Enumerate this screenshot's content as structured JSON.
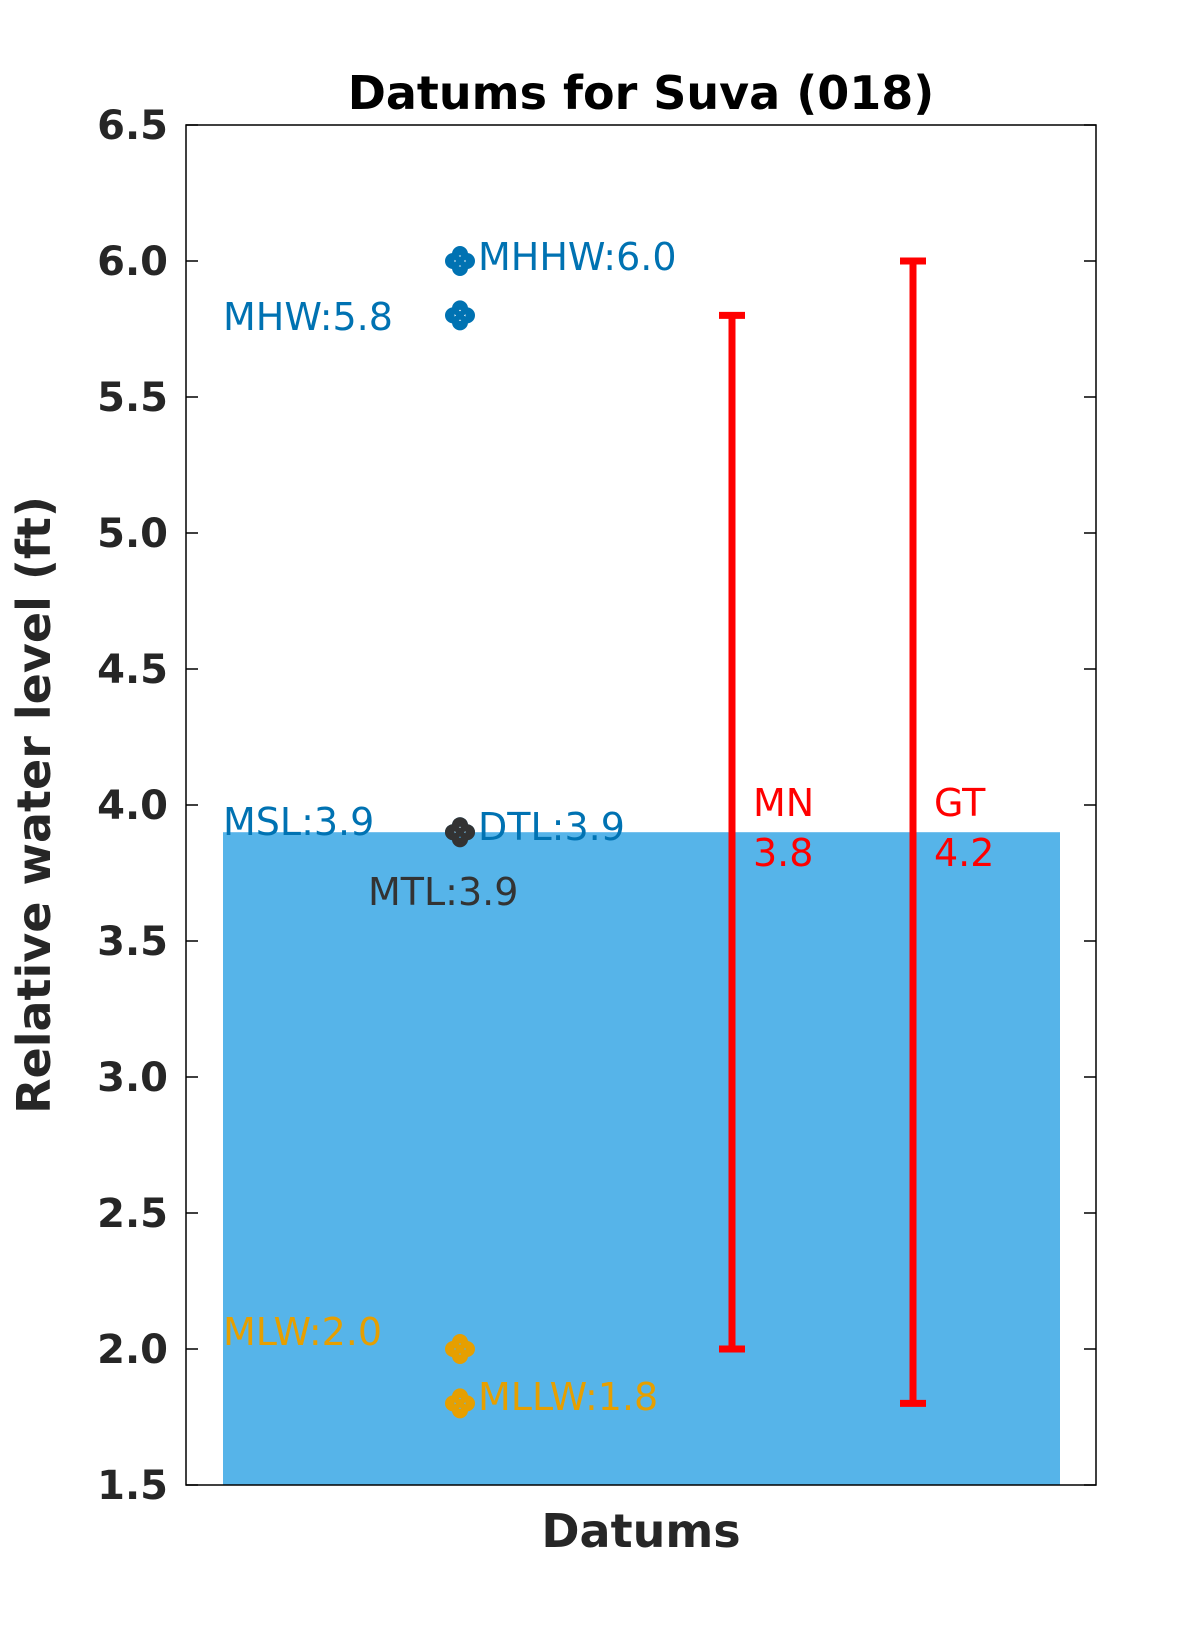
{
  "chart_data": {
    "type": "scatter",
    "title": "Datums for Suva (018)",
    "xlabel": "Datums",
    "ylabel": "Relative water level (ft)",
    "ylim": [
      1.5,
      6.5
    ],
    "yticks": [
      "1.5",
      "2.0",
      "2.5",
      "3.0",
      "3.5",
      "4.0",
      "4.5",
      "5.0",
      "5.5",
      "6.0",
      "6.5"
    ],
    "grid": false,
    "background_fill": {
      "level": 3.9,
      "color": "#56b4e9"
    },
    "datums": [
      {
        "name": "MHHW",
        "value": 6.0,
        "label": "MHHW:6.0",
        "color": "#0072b2",
        "label_side": "right"
      },
      {
        "name": "MHW",
        "value": 5.8,
        "label": "MHW:5.8",
        "color": "#0072b2",
        "label_side": "left"
      },
      {
        "name": "MSL",
        "value": 3.9,
        "label": "MSL:3.9",
        "color": "#0072b2",
        "label_side": "left"
      },
      {
        "name": "DTL",
        "value": 3.9,
        "label": "DTL:3.9",
        "color": "#0072b2",
        "label_side": "right"
      },
      {
        "name": "MTL",
        "value": 3.9,
        "label": "MTL:3.9",
        "color": "#333333",
        "label_side": "below"
      },
      {
        "name": "MLW",
        "value": 2.0,
        "label": "MLW:2.0",
        "color": "#e69f00",
        "label_side": "left"
      },
      {
        "name": "MLLW",
        "value": 1.8,
        "label": "MLLW:1.8",
        "color": "#e69f00",
        "label_side": "right"
      }
    ],
    "ranges": [
      {
        "name": "MN",
        "value_label": "3.8",
        "low": 2.0,
        "high": 5.8,
        "color": "#ff0000"
      },
      {
        "name": "GT",
        "value_label": "4.2",
        "low": 1.8,
        "high": 6.0,
        "color": "#ff0000"
      }
    ]
  }
}
